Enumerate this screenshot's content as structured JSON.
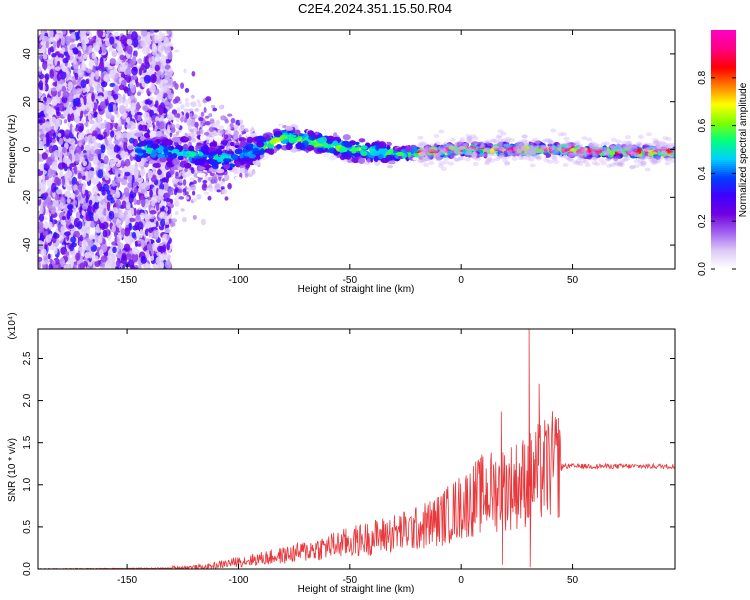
{
  "title": "C2E4.2024.351.15.50.R04",
  "chart_data": [
    {
      "type": "heatmap",
      "xlabel": "Height of straight line (km)",
      "ylabel": "Frequency (Hz)",
      "xlim": [
        -190,
        96
      ],
      "ylim": [
        -50,
        50
      ],
      "xticks": [
        -150,
        -100,
        -50,
        0,
        50
      ],
      "yticks": [
        -40,
        -20,
        0,
        20,
        40
      ],
      "colorbar": {
        "label": "Normalized spectral amplitude",
        "range": [
          0.0,
          1.0
        ],
        "ticks": [
          0.0,
          0.2,
          0.4,
          0.6,
          0.8
        ],
        "tick_labels": [
          "0.0",
          "0.2",
          "0.4",
          "0.6",
          "0.8"
        ],
        "colors": [
          "#ffffff",
          "#dcc8f8",
          "#a060f0",
          "#7000e0",
          "#4000ff",
          "#0040ff",
          "#00d0ff",
          "#00ff80",
          "#80ff00",
          "#ffff00",
          "#ff8000",
          "#ff0000",
          "#ff0080",
          "#ff00c0"
        ]
      },
      "ridge": {
        "x": [
          -140,
          -120,
          -105,
          -95,
          -80,
          -65,
          -50,
          -40,
          -30,
          -15,
          0,
          15,
          30,
          45,
          60,
          75,
          90
        ],
        "y": [
          0,
          -2,
          -4,
          -1,
          5,
          3,
          0,
          -1,
          -2,
          -1,
          0,
          0,
          0,
          0,
          -1,
          -1,
          -1
        ]
      }
    },
    {
      "type": "line",
      "xlabel": "Height of straight line (km)",
      "ylabel": "SNR (10 * v/v)",
      "y_multiplier": "(x10⁴)",
      "xlim": [
        -190,
        96
      ],
      "ylim": [
        0,
        2.85
      ],
      "xticks": [
        -150,
        -100,
        -50,
        0,
        50
      ],
      "yticks": [
        0.0,
        0.5,
        1.0,
        1.5,
        2.0,
        2.5
      ],
      "ytick_labels": [
        "0.0",
        "0.5",
        "1.0",
        "1.5",
        "2.0",
        "2.5"
      ],
      "color": "#e8383c",
      "envelope": {
        "x": [
          -190,
          -130,
          -115,
          -100,
          -80,
          -60,
          -40,
          -20,
          -10,
          0,
          10,
          18,
          25,
          30,
          40,
          50,
          96
        ],
        "y": [
          0.0,
          0.01,
          0.02,
          0.08,
          0.15,
          0.25,
          0.35,
          0.45,
          0.55,
          0.7,
          0.85,
          0.9,
          0.95,
          1.0,
          1.15,
          1.22,
          1.22
        ]
      },
      "spikes": [
        {
          "x": 18,
          "y": 1.87
        },
        {
          "x": 18.5,
          "y": 0.05
        },
        {
          "x": 30.5,
          "y": 2.85
        },
        {
          "x": 31,
          "y": 0.02
        },
        {
          "x": 35,
          "y": 2.2
        },
        {
          "x": 42,
          "y": 1.55
        }
      ]
    }
  ]
}
